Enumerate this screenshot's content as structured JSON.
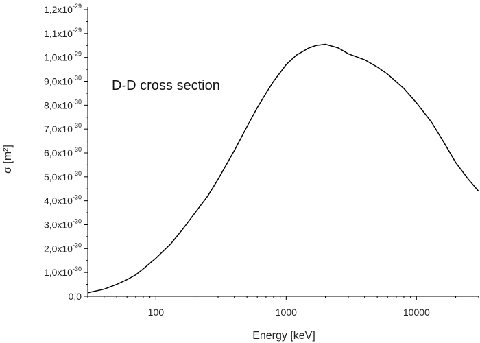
{
  "chart_data": {
    "type": "line",
    "title": "",
    "annotation": "D-D cross section",
    "xlabel": "Energy [keV]",
    "ylabel": "σ [m²]",
    "xscale": "log",
    "xlim": [
      30,
      30000
    ],
    "ylim": [
      0,
      1.2e-29
    ],
    "x_ticks": [
      {
        "value": 100,
        "label": "100"
      },
      {
        "value": 1000,
        "label": "1000"
      },
      {
        "value": 10000,
        "label": "10000"
      }
    ],
    "y_ticks": [
      {
        "value": 0,
        "mantissa": "0,0",
        "exp": ""
      },
      {
        "value": 1e-30,
        "mantissa": "1,0x10",
        "exp": "-30"
      },
      {
        "value": 2e-30,
        "mantissa": "2,0x10",
        "exp": "-30"
      },
      {
        "value": 3e-30,
        "mantissa": "3,0x10",
        "exp": "-30"
      },
      {
        "value": 4e-30,
        "mantissa": "4,0x10",
        "exp": "-30"
      },
      {
        "value": 5e-30,
        "mantissa": "5,0x10",
        "exp": "-30"
      },
      {
        "value": 6e-30,
        "mantissa": "6,0x10",
        "exp": "-30"
      },
      {
        "value": 7e-30,
        "mantissa": "7,0x10",
        "exp": "-30"
      },
      {
        "value": 8e-30,
        "mantissa": "8,0x10",
        "exp": "-30"
      },
      {
        "value": 9e-30,
        "mantissa": "9,0x10",
        "exp": "-30"
      },
      {
        "value": 1e-29,
        "mantissa": "1,0x10",
        "exp": "-29"
      },
      {
        "value": 1.1e-29,
        "mantissa": "1,1x10",
        "exp": "-29"
      },
      {
        "value": 1.2e-29,
        "mantissa": "1,2x10",
        "exp": "-29"
      }
    ],
    "series": [
      {
        "name": "D-D cross section",
        "x": [
          30,
          40,
          50,
          60,
          70,
          80,
          100,
          130,
          160,
          200,
          250,
          300,
          400,
          500,
          600,
          700,
          800,
          1000,
          1200,
          1500,
          1700,
          2000,
          2500,
          3000,
          4000,
          5000,
          6000,
          8000,
          10000,
          13000,
          16000,
          20000,
          25000,
          30000
        ],
        "y": [
          1.5e-31,
          3e-31,
          5e-31,
          7e-31,
          9e-31,
          1.15e-30,
          1.6e-30,
          2.2e-30,
          2.8e-30,
          3.5e-30,
          4.2e-30,
          4.9e-30,
          6.1e-30,
          7.1e-30,
          7.9e-30,
          8.5e-30,
          9e-30,
          9.7e-30,
          1.01e-29,
          1.04e-29,
          1.05e-29,
          1.055e-29,
          1.04e-29,
          1.015e-29,
          9.9e-30,
          9.6e-30,
          9.3e-30,
          8.7e-30,
          8.1e-30,
          7.3e-30,
          6.5e-30,
          5.6e-30,
          4.9e-30,
          4.4e-30
        ]
      }
    ]
  }
}
